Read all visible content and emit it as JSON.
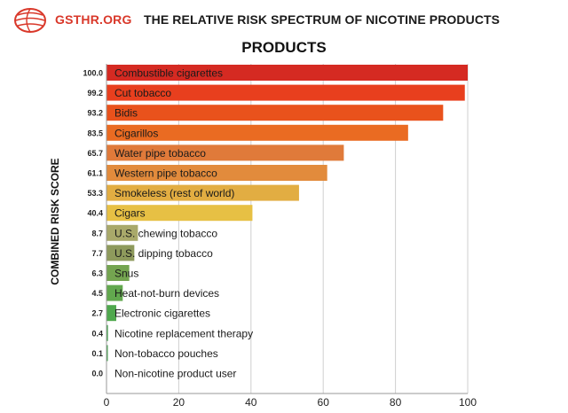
{
  "header": {
    "brand": "GSTHR.ORG",
    "title": "THE RELATIVE RISK SPECTRUM OF NICOTINE PRODUCTS"
  },
  "chart_data": {
    "type": "bar",
    "orientation": "horizontal",
    "title": "PRODUCTS",
    "ylabel": "COMBINED RISK SCORE",
    "xlabel": "",
    "xlim": [
      0,
      100
    ],
    "xticks": [
      0,
      20,
      40,
      60,
      80,
      100
    ],
    "grid": true,
    "categories": [
      "Combustible cigarettes",
      "Cut tobacco",
      "Bidis",
      "Cigarillos",
      "Water pipe tobacco",
      "Western pipe tobacco",
      "Smokeless (rest of world)",
      "Cigars",
      "U.S. chewing tobacco",
      "U.S. dipping tobacco",
      "Snus",
      "Heat-not-burn devices",
      "Electronic cigarettes",
      "Nicotine replacement therapy",
      "Non-tobacco pouches",
      "Non-nicotine product user"
    ],
    "values": [
      100.0,
      99.2,
      93.2,
      83.5,
      65.7,
      61.1,
      53.3,
      40.4,
      8.7,
      7.7,
      6.3,
      4.5,
      2.7,
      0.4,
      0.1,
      0.0
    ],
    "value_labels": [
      "100.0",
      "99.2",
      "93.2",
      "83.5",
      "65.7",
      "61.1",
      "53.3",
      "40.4",
      "8.7",
      "7.7",
      "6.3",
      "4.5",
      "2.7",
      "0.4",
      "0.1",
      "0.0"
    ],
    "colors": [
      "#d52a22",
      "#e83f1e",
      "#e9521c",
      "#ea6b22",
      "#e07a3a",
      "#e28b3c",
      "#e2ad42",
      "#e7c044",
      "#a9a96a",
      "#8e9a5c",
      "#74a450",
      "#62a84e",
      "#4fa84d",
      "#3d9f48",
      "#3d9f48",
      "#3d9f48"
    ]
  }
}
